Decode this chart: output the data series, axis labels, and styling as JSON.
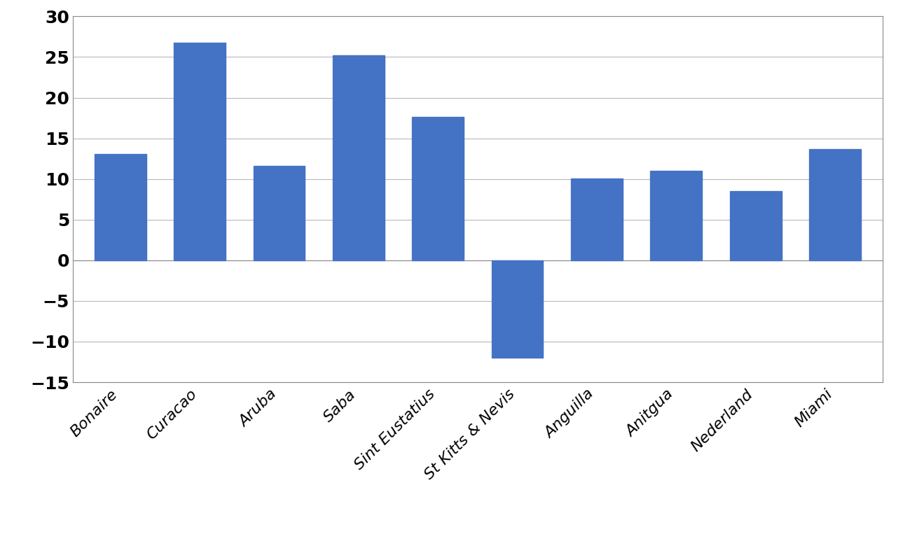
{
  "categories": [
    "Bonaire",
    "Curacao",
    "Aruba",
    "Saba",
    "Sint Eustatius",
    "St Kitts & Nevis",
    "Anguilla",
    "Anitgua",
    "Nederland",
    "Miami"
  ],
  "values": [
    13.1,
    26.8,
    11.6,
    25.2,
    17.6,
    -12.0,
    10.1,
    11.0,
    8.5,
    13.7
  ],
  "bar_color": "#4472C4",
  "ylim": [
    -15,
    30
  ],
  "yticks": [
    -15,
    -10,
    -5,
    0,
    5,
    10,
    15,
    20,
    25,
    30
  ],
  "background_color": "#ffffff",
  "grid_color": "#b8b8b8",
  "bar_width": 0.65,
  "ytick_fontsize": 18,
  "xtick_fontsize": 16
}
